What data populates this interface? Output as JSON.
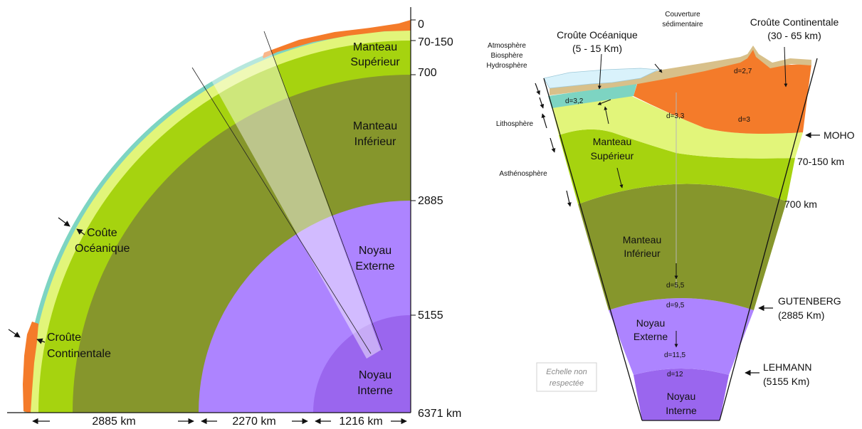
{
  "left": {
    "depths": {
      "d0": "0",
      "d1": "70-150",
      "d2": "700",
      "d3": "2885",
      "d4": "5155",
      "d5": "6371 km"
    },
    "layers": {
      "upper_mantle": [
        "Manteau",
        "Supérieur"
      ],
      "lower_mantle": [
        "Manteau",
        "Inférieur"
      ],
      "outer_core": [
        "Noyau",
        "Externe"
      ],
      "inner_core": [
        "Noyau",
        "Interne"
      ]
    },
    "crust_labels": {
      "oceanic": [
        "Coûte",
        "Océanique"
      ],
      "continental": [
        "Croûte",
        "Continentale"
      ]
    },
    "scale": {
      "mantle": "2885 km",
      "outer_core": "2270 km",
      "inner_core": "1216 km"
    }
  },
  "right": {
    "top_labels": {
      "oceanic": [
        "Croûte Océanique",
        "(5 - 15 Km)"
      ],
      "sediment": [
        "Couverture",
        "sédimentaire"
      ],
      "continental": [
        "Croûte Continentale",
        "(30 - 65 km)"
      ]
    },
    "envelopes": [
      "Atmosphère",
      "Biosphère",
      "Hydrosphère"
    ],
    "lithosphere": "Lithosphère",
    "asthenosphere": "Asthénosphère",
    "densities": {
      "ocean_crust": "d=3,2",
      "cont_top": "d=2,7",
      "cont_root": "d=3",
      "upper_mantle": "d=3,3",
      "lower_mantle_base": "d=5,5",
      "outer_core_top": "d=9,5",
      "outer_core_base": "d=11,5",
      "inner_core": "d=12"
    },
    "layers": {
      "upper_mantle": [
        "Manteau",
        "Supérieur"
      ],
      "lower_mantle": [
        "Manteau",
        "Inférieur"
      ],
      "outer_core": [
        "Noyau",
        "Externe"
      ],
      "inner_core": [
        "Noyau",
        "Interne"
      ]
    },
    "boundaries": {
      "moho": "MOHO",
      "lith": "70-150 km",
      "trans": "700 km",
      "gutenberg": [
        "GUTENBERG",
        "(2885 Km)"
      ],
      "lehmann": [
        "LEHMANN",
        "(5155 Km)"
      ]
    },
    "note": [
      "Echelle non",
      "respectée"
    ]
  },
  "colors": {
    "continental_crust": "#f47b2a",
    "oceanic_crust": "#7dd4c2",
    "lithosphere": "#e2f57a",
    "asthenosphere": "#a6d30f",
    "lower_mantle": "#86962c",
    "outer_core": "#ad84ff",
    "inner_core": "#9a66ee",
    "ocean_water": "#d9f2fb",
    "sediment": "#d8c08a"
  }
}
